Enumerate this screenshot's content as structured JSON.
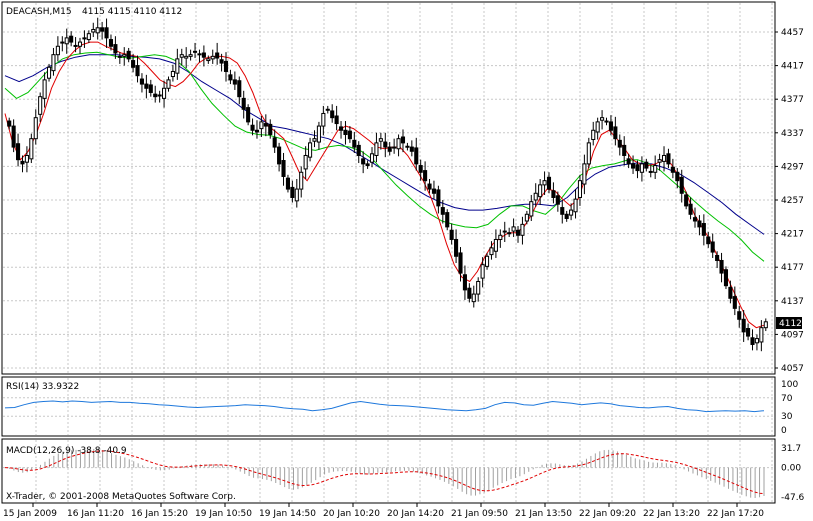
{
  "colors": {
    "candle": "#000000",
    "grid": "#c8c8c8",
    "frame": "#000000",
    "ma_fast": "#e00000",
    "ma_mid": "#00c000",
    "ma_slow": "#00008b",
    "rsi": "#1e78dc",
    "macd_signal": "#e00000",
    "macd_hist": "#a0a0a0",
    "price_box_bg": "#000000",
    "price_box_fg": "#ffffff"
  },
  "main": {
    "title": "DEACASH,M15",
    "ohlc": "4115 4115 4110 4112",
    "current_price": "4112",
    "y_ticks": [
      "4457",
      "4417",
      "4377",
      "4337",
      "4297",
      "4257",
      "4217",
      "4177",
      "4137",
      "4097",
      "4057"
    ]
  },
  "rsi": {
    "title": "RSI(14) 33.9322",
    "y_ticks": [
      "100",
      "70",
      "30",
      "0"
    ]
  },
  "macd": {
    "title": "MACD(12,26,9) -38.8 -40.9",
    "y_ticks": [
      "31.7",
      "0.00",
      "-47.6"
    ]
  },
  "x_labels": [
    "15 Jan 2009",
    "16 Jan 11:20",
    "16 Jan 15:20",
    "19 Jan 10:50",
    "19 Jan 14:50",
    "20 Jan 10:20",
    "20 Jan 14:20",
    "21 Jan 09:50",
    "21 Jan 13:50",
    "22 Jan 09:20",
    "22 Jan 13:20",
    "22 Jan 17:20"
  ],
  "copyright": "X-Trader, © 2001-2008 MetaQuotes Software Corp.",
  "chart_data": {
    "type": "candlestick",
    "symbol": "DEACASH",
    "timeframe": "M15",
    "ylim": [
      4057,
      4457
    ],
    "close_series": [
      4345,
      4320,
      4305,
      4300,
      4310,
      4330,
      4355,
      4380,
      4400,
      4415,
      4430,
      4440,
      4445,
      4450,
      4445,
      4440,
      4445,
      4450,
      4455,
      4460,
      4462,
      4458,
      4450,
      4440,
      4432,
      4428,
      4430,
      4425,
      4415,
      4405,
      4395,
      4390,
      4385,
      4380,
      4382,
      4390,
      4400,
      4410,
      4425,
      4430,
      4428,
      4430,
      4433,
      4430,
      4427,
      4425,
      4428,
      4426,
      4420,
      4410,
      4400,
      4395,
      4380,
      4365,
      4350,
      4340,
      4338,
      4350,
      4345,
      4335,
      4320,
      4300,
      4285,
      4270,
      4260,
      4270,
      4290,
      4310,
      4325,
      4330,
      4345,
      4360,
      4365,
      4355,
      4348,
      4340,
      4335,
      4330,
      4320,
      4310,
      4300,
      4298,
      4312,
      4325,
      4330,
      4320,
      4315,
      4320,
      4330,
      4325,
      4320,
      4315,
      4300,
      4290,
      4280,
      4270,
      4265,
      4250,
      4240,
      4225,
      4210,
      4190,
      4170,
      4150,
      4140,
      4145,
      4160,
      4180,
      4190,
      4200,
      4210,
      4215,
      4220,
      4218,
      4225,
      4215,
      4228,
      4240,
      4255,
      4265,
      4275,
      4280,
      4270,
      4260,
      4252,
      4240,
      4235,
      4245,
      4258,
      4280,
      4300,
      4325,
      4340,
      4350,
      4355,
      4350,
      4340,
      4330,
      4320,
      4310,
      4300,
      4295,
      4292,
      4300,
      4295,
      4290,
      4298,
      4305,
      4310,
      4300,
      4290,
      4280,
      4265,
      4250,
      4240,
      4232,
      4225,
      4215,
      4205,
      4195,
      4185,
      4170,
      4155,
      4140,
      4128,
      4115,
      4100,
      4095,
      4085,
      4092,
      4105,
      4112
    ],
    "ma_fast": [
      4360,
      4325,
      4305,
      4315,
      4335,
      4360,
      4390,
      4410,
      4425,
      4435,
      4442,
      4445,
      4445,
      4440,
      4436,
      4432,
      4430,
      4428,
      4420,
      4410,
      4400,
      4395,
      4392,
      4398,
      4408,
      4420,
      4426,
      4428,
      4428,
      4426,
      4420,
      4405,
      4385,
      4360,
      4345,
      4338,
      4330,
      4310,
      4290,
      4280,
      4295,
      4310,
      4325,
      4340,
      4345,
      4342,
      4335,
      4328,
      4320,
      4318,
      4320,
      4320,
      4310,
      4295,
      4280,
      4260,
      4235,
      4205,
      4180,
      4165,
      4160,
      4172,
      4190,
      4205,
      4212,
      4218,
      4218,
      4225,
      4240,
      4258,
      4270,
      4268,
      4258,
      4250,
      4258,
      4285,
      4315,
      4335,
      4340,
      4330,
      4318,
      4305,
      4300,
      4298,
      4300,
      4305,
      4300,
      4285,
      4265,
      4240,
      4225,
      4210,
      4190,
      4170,
      4150,
      4130,
      4112,
      4105,
      4108
    ],
    "ma_mid": [
      4390,
      4378,
      4385,
      4400,
      4415,
      4425,
      4430,
      4432,
      4433,
      4430,
      4427,
      4426,
      4428,
      4430,
      4428,
      4422,
      4410,
      4390,
      4372,
      4358,
      4345,
      4338,
      4335,
      4334,
      4330,
      4324,
      4318,
      4316,
      4320,
      4322,
      4320,
      4315,
      4305,
      4290,
      4275,
      4262,
      4250,
      4240,
      4232,
      4228,
      4225,
      4224,
      4228,
      4240,
      4250,
      4250,
      4244,
      4240,
      4252,
      4270,
      4286,
      4295,
      4298,
      4300,
      4304,
      4305,
      4300,
      4292,
      4280,
      4268,
      4255,
      4243,
      4232,
      4222,
      4210,
      4195,
      4184
    ],
    "ma_slow": [
      4405,
      4398,
      4405,
      4415,
      4422,
      4427,
      4430,
      4430,
      4430,
      4428,
      4427,
      4425,
      4420,
      4410,
      4398,
      4388,
      4378,
      4365,
      4355,
      4345,
      4342,
      4338,
      4334,
      4330,
      4323,
      4313,
      4303,
      4292,
      4282,
      4272,
      4262,
      4254,
      4248,
      4245,
      4245,
      4247,
      4250,
      4252,
      4252,
      4250,
      4260,
      4276,
      4288,
      4296,
      4299,
      4301,
      4300,
      4295,
      4288,
      4278,
      4266,
      4254,
      4240,
      4228,
      4216
    ],
    "rsi_values": [
      48,
      49,
      55,
      60,
      62,
      63,
      61,
      63,
      62,
      60,
      61,
      62,
      60,
      60,
      58,
      57,
      55,
      54,
      52,
      50,
      49,
      50,
      51,
      52,
      53,
      55,
      54,
      53,
      51,
      48,
      46,
      45,
      42,
      44,
      47,
      53,
      59,
      62,
      59,
      56,
      54,
      53,
      52,
      50,
      48,
      46,
      44,
      43,
      42,
      44,
      47,
      55,
      60,
      59,
      55,
      54,
      58,
      62,
      60,
      58,
      55,
      57,
      59,
      57,
      53,
      51,
      49,
      48,
      50,
      51,
      47,
      44,
      43,
      40,
      41,
      42,
      41,
      42,
      40,
      42
    ]
  }
}
